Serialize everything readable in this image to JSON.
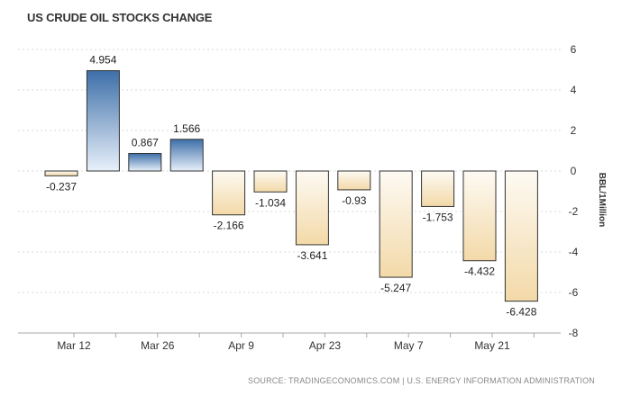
{
  "chart_data": {
    "type": "bar",
    "title": "US CRUDE OIL STOCKS CHANGE",
    "ylabel": "BBL/1Million",
    "xlabel": "",
    "ylim": [
      -8,
      6
    ],
    "yticks": [
      6,
      4,
      2,
      0,
      -2,
      -4,
      -6,
      -8
    ],
    "grid": true,
    "values": [
      -0.237,
      4.954,
      0.867,
      1.566,
      -2.166,
      -1.034,
      -3.641,
      -0.93,
      -5.247,
      -1.753,
      -4.432,
      -6.428
    ],
    "x_tick_labels": [
      "Mar 12",
      "Mar 26",
      "Apr 9",
      "Apr 23",
      "May 7",
      "May 21"
    ],
    "positive_color": "#4a7ebb",
    "negative_color": "#f5deb0",
    "source": "SOURCE: TRADINGECONOMICS.COM | U.S. ENERGY INFORMATION ADMINISTRATION"
  }
}
